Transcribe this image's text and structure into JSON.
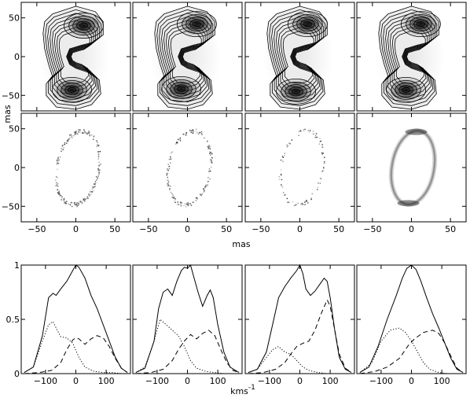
{
  "chart_data": [
    {
      "type": "heatmap",
      "row": "top",
      "description": "four contour maps of a ring-like emission distribution with two bright lobes",
      "ylabel": "mas",
      "xticks": [
        -50,
        0,
        50
      ],
      "yticks": [
        -50,
        0,
        50
      ],
      "xlim": [
        -70,
        70
      ],
      "ylim": [
        -70,
        70
      ],
      "panels": [
        {
          "peak_north": [
            10,
            40
          ],
          "peak_south": [
            -5,
            -43
          ]
        },
        {
          "peak_north": [
            12,
            42
          ],
          "peak_south": [
            -8,
            -42
          ]
        },
        {
          "peak_north": [
            10,
            42
          ],
          "peak_south": [
            -5,
            -45
          ]
        },
        {
          "peak_north": [
            12,
            42
          ],
          "peak_south": [
            -7,
            -43
          ]
        }
      ]
    },
    {
      "type": "heatmap",
      "row": "middle",
      "description": "four maps of an elliptical ring of sparse emission",
      "xlabel": "mas",
      "xticks": [
        -50,
        0,
        50
      ],
      "yticks": [
        -50,
        0,
        50
      ],
      "xlim": [
        -70,
        70
      ],
      "ylim": [
        -70,
        70
      ],
      "ring": {
        "center": [
          2,
          0
        ],
        "semi_major": 48,
        "semi_minor": 27,
        "tilt_deg": -10
      }
    },
    {
      "type": "line",
      "row": "bottom",
      "xlabel": "kms",
      "xlabel_sup": "-1",
      "xticks": [
        -100,
        0,
        100
      ],
      "yticks": [
        0,
        0.5,
        1
      ],
      "ytick_labels": [
        "0",
        "0.5",
        "1"
      ],
      "xlim": [
        -180,
        180
      ],
      "ylim": [
        0,
        1
      ],
      "panels": [
        {
          "series": [
            {
              "style": "solid",
              "x": [
                -170,
                -140,
                -110,
                -90,
                -75,
                -65,
                -50,
                -30,
                -10,
                0,
                10,
                30,
                50,
                70,
                90,
                110,
                130,
                150,
                170
              ],
              "y": [
                0.01,
                0.06,
                0.35,
                0.7,
                0.74,
                0.72,
                0.78,
                0.85,
                0.95,
                1.0,
                0.98,
                0.88,
                0.72,
                0.6,
                0.45,
                0.3,
                0.15,
                0.05,
                0.01
              ]
            },
            {
              "style": "dotted",
              "x": [
                -170,
                -140,
                -110,
                -90,
                -75,
                -65,
                -50,
                -30,
                -10,
                10,
                30,
                60,
                90,
                120,
                150,
                170
              ],
              "y": [
                0.01,
                0.06,
                0.3,
                0.45,
                0.48,
                0.42,
                0.34,
                0.33,
                0.28,
                0.15,
                0.06,
                0.02,
                0.01,
                0.01,
                0.0,
                0.0
              ]
            },
            {
              "style": "dashed",
              "x": [
                -170,
                -120,
                -80,
                -50,
                -30,
                -10,
                0,
                10,
                30,
                50,
                70,
                90,
                110,
                130,
                150,
                170
              ],
              "y": [
                0.0,
                0.01,
                0.03,
                0.1,
                0.22,
                0.31,
                0.33,
                0.32,
                0.27,
                0.32,
                0.35,
                0.33,
                0.25,
                0.14,
                0.05,
                0.01
              ]
            }
          ]
        },
        {
          "series": [
            {
              "style": "solid",
              "x": [
                -170,
                -140,
                -110,
                -95,
                -80,
                -65,
                -50,
                -35,
                -20,
                -10,
                0,
                10,
                20,
                35,
                50,
                65,
                75,
                85,
                100,
                120,
                140,
                170
              ],
              "y": [
                0.01,
                0.05,
                0.3,
                0.6,
                0.75,
                0.78,
                0.72,
                0.85,
                0.95,
                0.98,
                0.97,
                1.0,
                0.9,
                0.75,
                0.62,
                0.72,
                0.77,
                0.7,
                0.45,
                0.2,
                0.06,
                0.01
              ]
            },
            {
              "style": "dotted",
              "x": [
                -170,
                -140,
                -110,
                -90,
                -70,
                -50,
                -30,
                -10,
                10,
                30,
                60,
                90,
                120,
                150,
                170
              ],
              "y": [
                0.01,
                0.06,
                0.3,
                0.5,
                0.45,
                0.4,
                0.35,
                0.25,
                0.12,
                0.05,
                0.02,
                0.01,
                0.0,
                0.0,
                0.0
              ]
            },
            {
              "style": "dashed",
              "x": [
                -170,
                -120,
                -80,
                -50,
                -30,
                -10,
                10,
                30,
                50,
                70,
                90,
                110,
                130,
                150,
                170
              ],
              "y": [
                0.0,
                0.01,
                0.04,
                0.12,
                0.22,
                0.3,
                0.36,
                0.32,
                0.37,
                0.4,
                0.35,
                0.22,
                0.1,
                0.03,
                0.01
              ]
            }
          ]
        },
        {
          "series": [
            {
              "style": "solid",
              "x": [
                -170,
                -140,
                -110,
                -90,
                -70,
                -50,
                -30,
                -10,
                0,
                10,
                20,
                35,
                50,
                65,
                80,
                90,
                100,
                115,
                130,
                150,
                170
              ],
              "y": [
                0.01,
                0.04,
                0.2,
                0.45,
                0.7,
                0.8,
                0.88,
                0.95,
                1.0,
                0.92,
                0.78,
                0.72,
                0.76,
                0.82,
                0.88,
                0.85,
                0.7,
                0.4,
                0.15,
                0.04,
                0.01
              ]
            },
            {
              "style": "dotted",
              "x": [
                -170,
                -140,
                -110,
                -90,
                -70,
                -50,
                -30,
                -10,
                10,
                30,
                60,
                90,
                120,
                150,
                170
              ],
              "y": [
                0.01,
                0.04,
                0.15,
                0.22,
                0.25,
                0.2,
                0.18,
                0.12,
                0.06,
                0.03,
                0.01,
                0.0,
                0.0,
                0.0,
                0.0
              ]
            },
            {
              "style": "dashed",
              "x": [
                -170,
                -120,
                -80,
                -50,
                -30,
                -10,
                10,
                30,
                50,
                70,
                90,
                100,
                115,
                130,
                150,
                170
              ],
              "y": [
                0.0,
                0.01,
                0.04,
                0.1,
                0.18,
                0.25,
                0.28,
                0.3,
                0.4,
                0.55,
                0.68,
                0.62,
                0.4,
                0.18,
                0.05,
                0.01
              ]
            }
          ]
        },
        {
          "series": [
            {
              "style": "solid",
              "x": [
                -170,
                -140,
                -110,
                -80,
                -50,
                -30,
                -15,
                0,
                15,
                30,
                50,
                70,
                90,
                110,
                130,
                150,
                170
              ],
              "y": [
                0.01,
                0.06,
                0.25,
                0.5,
                0.72,
                0.88,
                0.97,
                1.0,
                0.96,
                0.86,
                0.7,
                0.55,
                0.42,
                0.28,
                0.14,
                0.04,
                0.01
              ]
            },
            {
              "style": "dotted",
              "x": [
                -170,
                -130,
                -100,
                -70,
                -40,
                -20,
                0,
                20,
                40,
                60,
                90,
                120,
                150,
                170
              ],
              "y": [
                0.01,
                0.1,
                0.3,
                0.4,
                0.42,
                0.38,
                0.3,
                0.2,
                0.1,
                0.04,
                0.01,
                0.0,
                0.0,
                0.0
              ]
            },
            {
              "style": "dashed",
              "x": [
                -170,
                -120,
                -80,
                -40,
                -10,
                10,
                40,
                70,
                90,
                110,
                130,
                150,
                170
              ],
              "y": [
                0.0,
                0.02,
                0.06,
                0.14,
                0.26,
                0.32,
                0.38,
                0.4,
                0.37,
                0.28,
                0.16,
                0.05,
                0.01
              ]
            }
          ]
        }
      ]
    }
  ]
}
